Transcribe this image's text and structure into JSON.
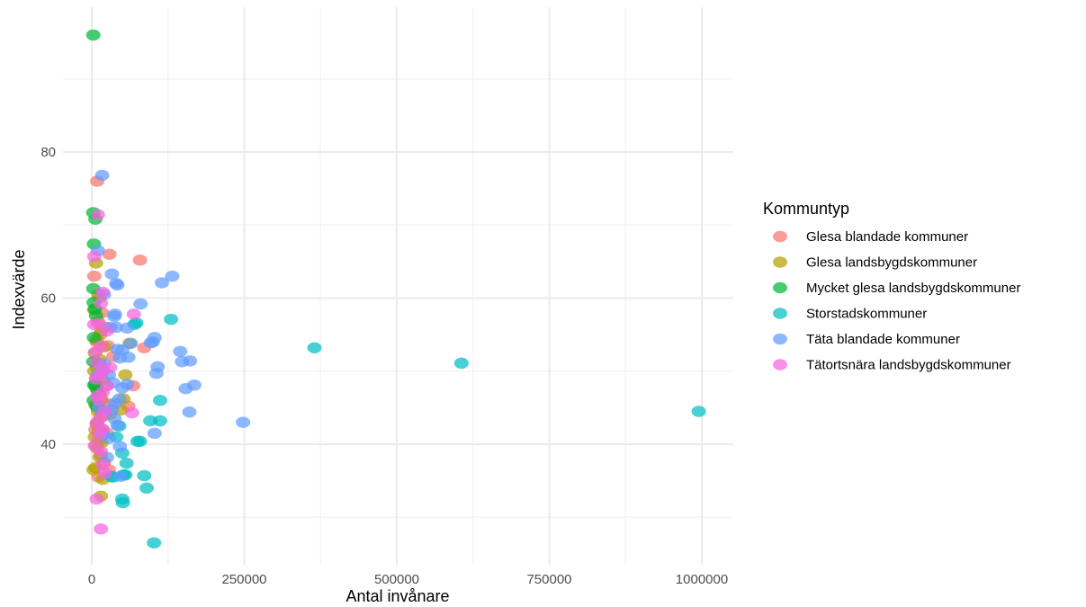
{
  "chart_data": {
    "type": "scatter",
    "title": "",
    "xlabel": "Antal invånare",
    "ylabel": "Indexvärde",
    "xlim": [
      -100000,
      1050000
    ],
    "ylim": [
      24,
      96
    ],
    "xticks": [
      0,
      250000,
      500000,
      750000,
      1000000
    ],
    "xtick_labels": [
      "0",
      "250000",
      "500000",
      "750000",
      "1000000"
    ],
    "yticks": [
      40,
      60,
      80
    ],
    "ytick_labels": [
      "40",
      "60",
      "80"
    ],
    "grid": true,
    "legend_title": "Kommuntyp",
    "legend_position": "right",
    "series": [
      {
        "name": "Glesa blandade kommuner",
        "color": "#F8766D",
        "points": [
          [
            9000,
            76
          ],
          [
            29000,
            66
          ],
          [
            79000,
            65.2
          ],
          [
            4000,
            63
          ],
          [
            11000,
            60.5
          ],
          [
            17000,
            58
          ],
          [
            22000,
            56
          ],
          [
            14000,
            55
          ],
          [
            8000,
            54
          ],
          [
            26000,
            53.5
          ],
          [
            35000,
            52
          ],
          [
            12000,
            51
          ],
          [
            19000,
            50
          ],
          [
            7000,
            49
          ],
          [
            23000,
            48
          ],
          [
            13000,
            47
          ],
          [
            16000,
            46
          ],
          [
            31000,
            45.5
          ],
          [
            10000,
            45
          ],
          [
            15000,
            44.5
          ],
          [
            21000,
            44
          ],
          [
            9000,
            43
          ],
          [
            18000,
            42
          ],
          [
            25000,
            41.5
          ],
          [
            12000,
            40.5
          ],
          [
            7000,
            39.8
          ],
          [
            15000,
            38.5
          ],
          [
            20000,
            37.5
          ],
          [
            28000,
            36.5
          ],
          [
            11000,
            35.5
          ],
          [
            86000,
            53.2
          ],
          [
            68000,
            48
          ],
          [
            60000,
            45.2
          ],
          [
            6000,
            42
          ],
          [
            14000,
            41
          ]
        ]
      },
      {
        "name": "Glesa landsbygdskommuner",
        "color": "#B79F00",
        "points": [
          [
            7000,
            64.8
          ],
          [
            12000,
            60
          ],
          [
            4000,
            58.4
          ],
          [
            10000,
            56.8
          ],
          [
            15000,
            55.5
          ],
          [
            8000,
            54.3
          ],
          [
            20000,
            53.3
          ],
          [
            5000,
            52.5
          ],
          [
            13000,
            51.6
          ],
          [
            9000,
            50.5
          ],
          [
            4000,
            50
          ],
          [
            18000,
            48.8
          ],
          [
            7000,
            47.8
          ],
          [
            11000,
            47
          ],
          [
            15000,
            46.2
          ],
          [
            6000,
            45.4
          ],
          [
            10000,
            44.5
          ],
          [
            14000,
            43.6
          ],
          [
            8000,
            42.8
          ],
          [
            12000,
            41.9
          ],
          [
            5000,
            41
          ],
          [
            16000,
            40.2
          ],
          [
            9000,
            39.4
          ],
          [
            13000,
            38.2
          ],
          [
            6000,
            36.8
          ],
          [
            3000,
            36.5
          ],
          [
            15000,
            32.9
          ],
          [
            18000,
            35.2
          ],
          [
            62000,
            53.8
          ],
          [
            55000,
            49.5
          ],
          [
            52000,
            46.2
          ],
          [
            48000,
            44.7
          ],
          [
            30000,
            44.1
          ]
        ]
      },
      {
        "name": "Mycket glesa landsbygdskommuner",
        "color": "#00BA38",
        "points": [
          [
            2500,
            96
          ],
          [
            2500,
            71.7
          ],
          [
            6000,
            70.8
          ],
          [
            3500,
            67.4
          ],
          [
            2500,
            61.3
          ],
          [
            3000,
            59.4
          ],
          [
            5000,
            58.5
          ],
          [
            7000,
            57.6
          ],
          [
            3500,
            54.6
          ],
          [
            2500,
            51.3
          ],
          [
            4000,
            48.1
          ],
          [
            6000,
            48.2
          ],
          [
            9000,
            47.5
          ],
          [
            3000,
            46
          ],
          [
            8000,
            45.2
          ]
        ]
      },
      {
        "name": "Storstadskommuner",
        "color": "#00BFC4",
        "points": [
          [
            995000,
            44.5
          ],
          [
            606000,
            51.1
          ],
          [
            365000,
            53.2
          ],
          [
            130000,
            57.1
          ],
          [
            73000,
            56.6
          ],
          [
            70000,
            56.4
          ],
          [
            112000,
            46
          ],
          [
            112000,
            43.2
          ],
          [
            96000,
            43.2
          ],
          [
            79000,
            40.4
          ],
          [
            75000,
            40.4
          ],
          [
            50000,
            38.8
          ],
          [
            57000,
            37.4
          ],
          [
            86000,
            35.7
          ],
          [
            52000,
            35.8
          ],
          [
            55000,
            35.8
          ],
          [
            32000,
            35.6
          ],
          [
            35000,
            35.5
          ],
          [
            50000,
            32.5
          ],
          [
            51000,
            32
          ],
          [
            90000,
            34
          ],
          [
            102000,
            26.5
          ],
          [
            45000,
            42.5
          ],
          [
            40000,
            41
          ]
        ]
      },
      {
        "name": "Täta blandade kommuner",
        "color": "#619CFF",
        "points": [
          [
            17000,
            76.8
          ],
          [
            10000,
            66.5
          ],
          [
            33000,
            63.3
          ],
          [
            42000,
            61.8
          ],
          [
            40000,
            62
          ],
          [
            132000,
            63
          ],
          [
            115000,
            62.1
          ],
          [
            20000,
            60.5
          ],
          [
            80000,
            59.2
          ],
          [
            38000,
            57.8
          ],
          [
            37000,
            57.5
          ],
          [
            30000,
            56
          ],
          [
            40000,
            56
          ],
          [
            58000,
            55.9
          ],
          [
            103000,
            54.6
          ],
          [
            100000,
            54
          ],
          [
            97000,
            53.9
          ],
          [
            64000,
            53.8
          ],
          [
            42000,
            53
          ],
          [
            50000,
            52.9
          ],
          [
            145000,
            52.7
          ],
          [
            60000,
            51.9
          ],
          [
            46000,
            51.8
          ],
          [
            148000,
            51.3
          ],
          [
            161000,
            51.4
          ],
          [
            108000,
            50.6
          ],
          [
            106000,
            49.7
          ],
          [
            20000,
            51
          ],
          [
            28000,
            49.5
          ],
          [
            35000,
            48.4
          ],
          [
            50000,
            47.7
          ],
          [
            58000,
            48.2
          ],
          [
            168000,
            48.1
          ],
          [
            154000,
            47.6
          ],
          [
            45000,
            46.2
          ],
          [
            38000,
            45.6
          ],
          [
            33000,
            44.7
          ],
          [
            22000,
            44.6
          ],
          [
            160000,
            44.4
          ],
          [
            37000,
            43.5
          ],
          [
            42000,
            42.6
          ],
          [
            248000,
            43
          ],
          [
            103000,
            41.5
          ],
          [
            28000,
            40.8
          ],
          [
            46000,
            39.7
          ],
          [
            25000,
            38.2
          ],
          [
            47000,
            35.6
          ],
          [
            19000,
            41.3
          ],
          [
            12000,
            45
          ],
          [
            15000,
            50.5
          ],
          [
            9000,
            49.4
          ]
        ]
      },
      {
        "name": "Tätortsnära landsbygdskommuner",
        "color": "#F564E3",
        "points": [
          [
            10000,
            71.4
          ],
          [
            4000,
            65.7
          ],
          [
            18000,
            60.8
          ],
          [
            15000,
            59.3
          ],
          [
            69000,
            57.8
          ],
          [
            4000,
            56.4
          ],
          [
            12000,
            56.5
          ],
          [
            25000,
            55.5
          ],
          [
            15000,
            53.4
          ],
          [
            6000,
            52.6
          ],
          [
            8000,
            51.2
          ],
          [
            18000,
            50.2
          ],
          [
            13000,
            49.5
          ],
          [
            7000,
            48.9
          ],
          [
            25000,
            48
          ],
          [
            18000,
            47.1
          ],
          [
            9000,
            46.6
          ],
          [
            11000,
            46
          ],
          [
            66000,
            44.3
          ],
          [
            21000,
            44.5
          ],
          [
            14000,
            43.6
          ],
          [
            8000,
            42.8
          ],
          [
            17000,
            42.1
          ],
          [
            12000,
            41.3
          ],
          [
            5000,
            39.8
          ],
          [
            15000,
            39
          ],
          [
            18000,
            37.2
          ],
          [
            22000,
            36
          ],
          [
            8000,
            32.5
          ],
          [
            15000,
            28.4
          ],
          [
            30000,
            50.5
          ]
        ]
      }
    ]
  }
}
